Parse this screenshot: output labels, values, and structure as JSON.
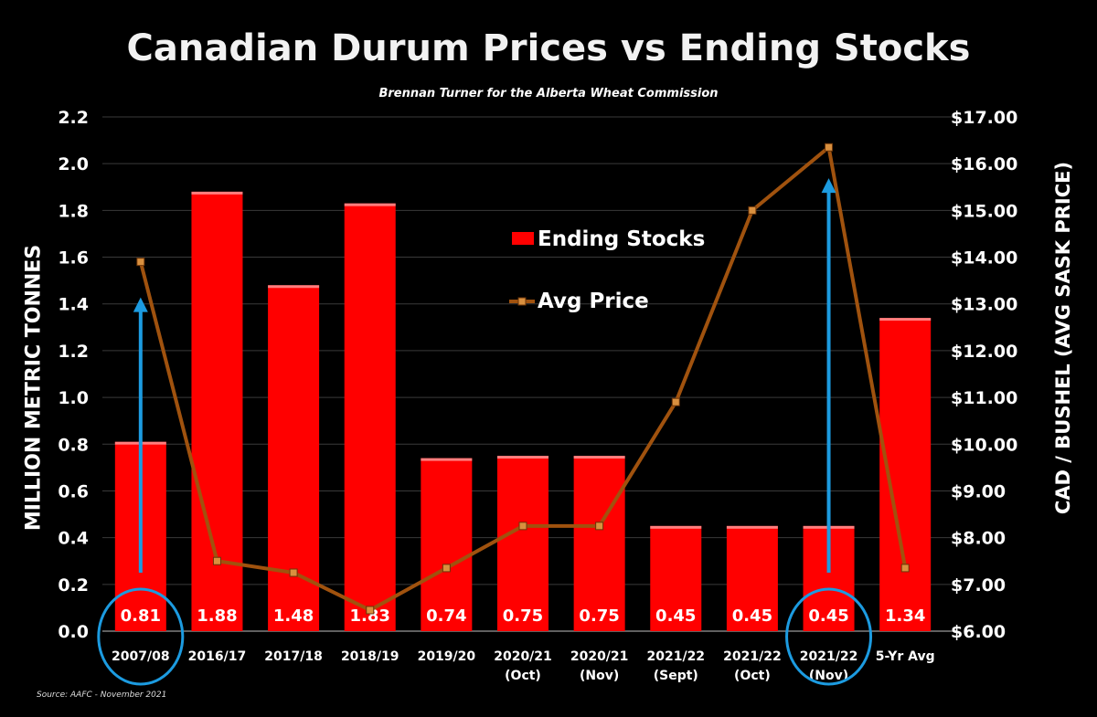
{
  "chart_data": {
    "type": "bar",
    "title": "Canadian Durum Prices vs Ending Stocks",
    "subtitle": "Brennan Turner for the Alberta Wheat Commission",
    "source": "Source: AAFC -  November 2021",
    "ylabel": "MILLION METRIC TONNES",
    "y2label": "CAD / BUSHEL (AVG SASK PRICE)",
    "ylim": [
      0,
      2.2
    ],
    "y2lim": [
      6.0,
      17.0
    ],
    "yticks": [
      "0.0",
      "0.2",
      "0.4",
      "0.6",
      "0.8",
      "1.0",
      "1.2",
      "1.4",
      "1.6",
      "1.8",
      "2.0",
      "2.2"
    ],
    "y2ticks": [
      "$6.00",
      "$7.00",
      "$8.00",
      "$9.00",
      "$10.00",
      "$11.00",
      "$12.00",
      "$13.00",
      "$14.00",
      "$15.00",
      "$16.00",
      "$17.00"
    ],
    "categories": [
      [
        "2007/08"
      ],
      [
        "2016/17"
      ],
      [
        "2017/18"
      ],
      [
        "2018/19"
      ],
      [
        "2019/20"
      ],
      [
        "2020/21",
        "(Oct)"
      ],
      [
        "2020/21",
        "(Nov)"
      ],
      [
        "2021/22",
        "(Sept)"
      ],
      [
        "2021/22",
        "(Oct)"
      ],
      [
        "2021/22",
        "(Nov)"
      ],
      [
        "5-Yr Avg"
      ]
    ],
    "series": [
      {
        "name": "Ending Stocks",
        "type": "bar",
        "axis": "left",
        "color": "#ff0000",
        "values": [
          0.81,
          1.88,
          1.48,
          1.83,
          0.74,
          0.75,
          0.75,
          0.45,
          0.45,
          0.45,
          1.34
        ],
        "labels": [
          "0.81",
          "1.88",
          "1.48",
          "1.83",
          "0.74",
          "0.75",
          "0.75",
          "0.45",
          "0.45",
          "0.45",
          "1.34"
        ]
      },
      {
        "name": "Avg Price",
        "type": "line",
        "axis": "right",
        "color": "#a0520e",
        "values": [
          13.9,
          7.5,
          7.25,
          6.45,
          7.35,
          8.25,
          8.25,
          10.9,
          15.0,
          16.35,
          7.35
        ]
      }
    ],
    "annotations": {
      "highlighted_categories": [
        0,
        9
      ],
      "highlight_color": "#1c9be0",
      "arrows": [
        {
          "category": 0,
          "from": 0.25,
          "to": 1.42
        },
        {
          "category": 9,
          "from": 0.25,
          "to": 1.93
        }
      ]
    },
    "legend": "center"
  }
}
